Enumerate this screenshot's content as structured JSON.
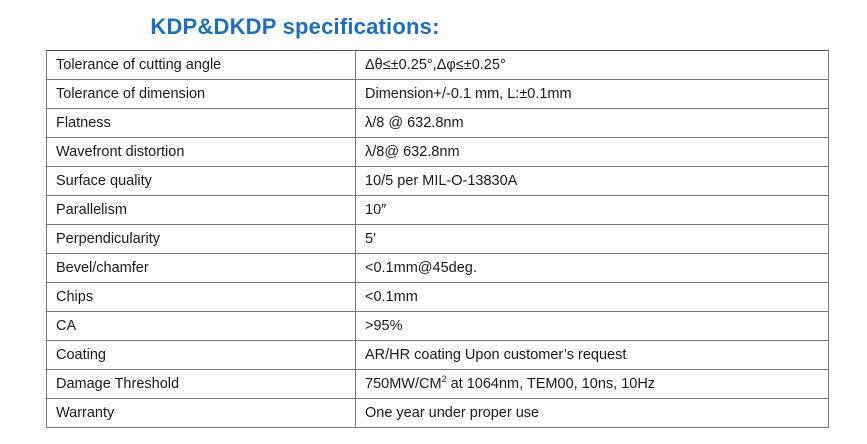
{
  "title": "KDP&DKDP specifications:",
  "specs": [
    {
      "parameter": "Tolerance of cutting angle",
      "value": "Δθ≤±0.25°,Δφ≤±0.25°"
    },
    {
      "parameter": "Tolerance of dimension",
      "value": "Dimension+/-0.1 mm, L:±0.1mm"
    },
    {
      "parameter": "Flatness",
      "value": "λ/8 @ 632.8nm"
    },
    {
      "parameter": "Wavefront distortion",
      "value": "λ/8@ 632.8nm"
    },
    {
      "parameter": "Surface quality",
      "value": "10/5  per MIL-O-13830A"
    },
    {
      "parameter": "Parallelism",
      "value": "10″"
    },
    {
      "parameter": "Perpendicularity",
      "value": "5′"
    },
    {
      "parameter": "Bevel/chamfer",
      "value": "<0.1mm@45deg."
    },
    {
      "parameter": "Chips",
      "value": "<0.1mm"
    },
    {
      "parameter": "CA",
      "value": ">95%"
    },
    {
      "parameter": "Coating",
      "value": "AR/HR coating Upon customer’s request"
    },
    {
      "parameter": "Damage Threshold",
      "value_main": "750MW/CM",
      "value_sup": "2",
      "value_rest": " at 1064nm, TEM00, 10ns, 10Hz"
    },
    {
      "parameter": "Warranty",
      "value": "One year under proper use"
    }
  ],
  "colors": {
    "title": "#1b6fc0",
    "border": "#7a7a7a",
    "text": "#1a1a1a"
  }
}
